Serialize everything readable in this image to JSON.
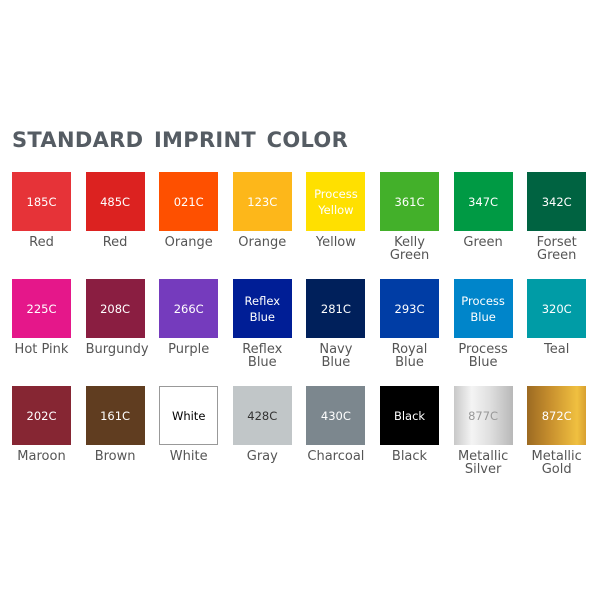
{
  "title": "STANDARD IMPRINT COLOR",
  "rows": [
    [
      {
        "code": "185C",
        "name": "Red",
        "bg": "#e63338",
        "fg": "#ffffff"
      },
      {
        "code": "485C",
        "name": "Red",
        "bg": "#dc2220",
        "fg": "#ffffff"
      },
      {
        "code": "021C",
        "name": "Orange",
        "bg": "#fe5000",
        "fg": "#ffffff"
      },
      {
        "code": "123C",
        "name": "Orange",
        "bg": "#fdb71a",
        "fg": "#ffffff"
      },
      {
        "code": "Process\nYellow",
        "name": "Yellow",
        "bg": "#ffe000",
        "fg": "#ffffff"
      },
      {
        "code": "361C",
        "name": "Kelly\nGreen",
        "bg": "#43b02a",
        "fg": "#ffffff"
      },
      {
        "code": "347C",
        "name": "Green",
        "bg": "#009a44",
        "fg": "#ffffff"
      },
      {
        "code": "342C",
        "name": "Forset\nGreen",
        "bg": "#006341",
        "fg": "#ffffff"
      }
    ],
    [
      {
        "code": "225C",
        "name": "Hot Pink",
        "bg": "#e5178a",
        "fg": "#ffffff"
      },
      {
        "code": "208C",
        "name": "Burgundy",
        "bg": "#8a1e41",
        "fg": "#ffffff"
      },
      {
        "code": "266C",
        "name": "Purple",
        "bg": "#753bbd",
        "fg": "#ffffff"
      },
      {
        "code": "Reflex\nBlue",
        "name": "Reflex\nBlue",
        "bg": "#001e96",
        "fg": "#ffffff"
      },
      {
        "code": "281C",
        "name": "Navy\nBlue",
        "bg": "#00205b",
        "fg": "#ffffff"
      },
      {
        "code": "293C",
        "name": "Royal\nBlue",
        "bg": "#003da5",
        "fg": "#ffffff"
      },
      {
        "code": "Process\nBlue",
        "name": "Process\nBlue",
        "bg": "#0085ca",
        "fg": "#ffffff"
      },
      {
        "code": "320C",
        "name": "Teal",
        "bg": "#009ca6",
        "fg": "#ffffff"
      }
    ],
    [
      {
        "code": "202C",
        "name": "Maroon",
        "bg": "#862633",
        "fg": "#ffffff"
      },
      {
        "code": "161C",
        "name": "Brown",
        "bg": "#603d20",
        "fg": "#ffffff"
      },
      {
        "code": "White",
        "name": "White",
        "bg": "#ffffff",
        "fg": "#000000"
      },
      {
        "code": "428C",
        "name": "Gray",
        "bg": "#c1c6c8",
        "fg": "#333333"
      },
      {
        "code": "430C",
        "name": "Charcoal",
        "bg": "#7c878e",
        "fg": "#ffffff"
      },
      {
        "code": "Black",
        "name": "Black",
        "bg": "#000000",
        "fg": "#ffffff"
      },
      {
        "code": "877C",
        "name": "Metallic\nSilver",
        "bg": "linear-gradient(90deg,#c8c8c8,#f4f4f4 30%,#e0e0e0 60%,#b8b8b8)",
        "fg": "#999999"
      },
      {
        "code": "872C",
        "name": "Metallic\nGold",
        "bg": "linear-gradient(90deg,#9c6a22,#c8902e 40%,#f0c040 85%,#d8a030)",
        "fg": "#ffffff"
      }
    ]
  ]
}
